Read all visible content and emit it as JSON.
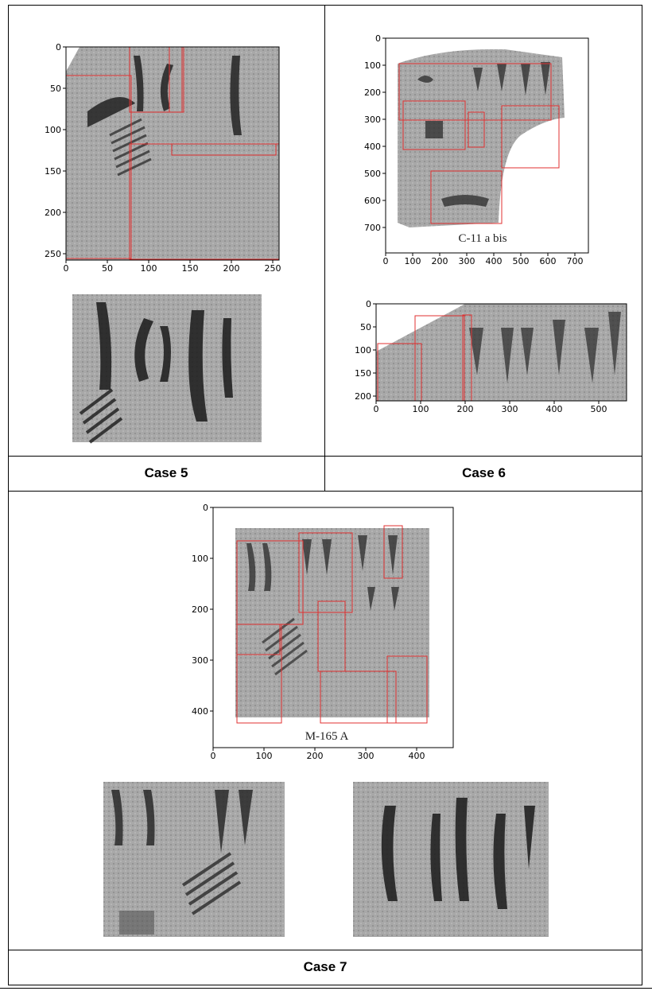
{
  "cases": {
    "case5": {
      "label": "Case 5",
      "plot": {
        "x_ticks": [
          "0",
          "50",
          "100",
          "150",
          "200",
          "250"
        ],
        "y_ticks": [
          "0",
          "50",
          "100",
          "150",
          "200",
          "250"
        ],
        "caption": ""
      }
    },
    "case6": {
      "label": "Case 6",
      "plot": {
        "x_ticks": [
          "0",
          "100",
          "200",
          "300",
          "400",
          "500",
          "600",
          "700"
        ],
        "y_ticks": [
          "0",
          "100",
          "200",
          "300",
          "400",
          "500",
          "600",
          "700"
        ],
        "caption": "C-11 a bis"
      },
      "crop_plot": {
        "x_ticks": [
          "0",
          "100",
          "200",
          "300",
          "400",
          "500"
        ],
        "y_ticks": [
          "0",
          "50",
          "100",
          "150",
          "200"
        ]
      }
    },
    "case7": {
      "label": "Case 7",
      "plot": {
        "x_ticks": [
          "0",
          "100",
          "200",
          "300",
          "400"
        ],
        "y_ticks": [
          "0",
          "100",
          "200",
          "300",
          "400"
        ],
        "caption": "M-165 A"
      }
    }
  },
  "colors": {
    "box": "#e03030",
    "frame": "#000000",
    "seal_bg": "#9a9a9a"
  }
}
